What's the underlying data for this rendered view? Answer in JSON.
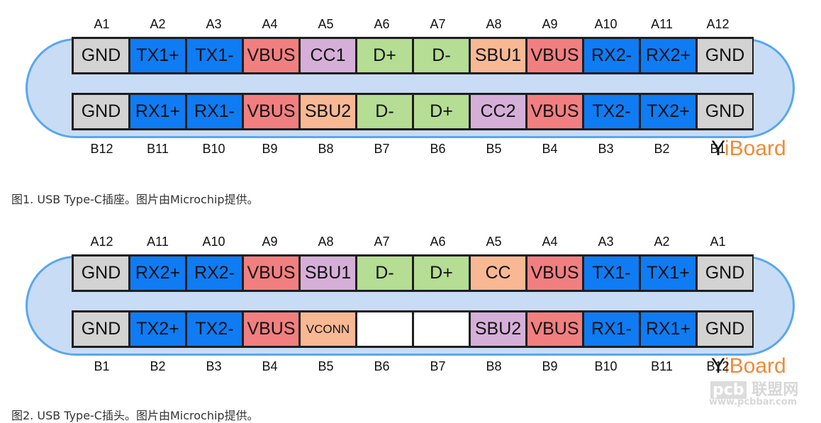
{
  "colors": {
    "GND": "#d3d3d3",
    "TX": "#0f7cf4",
    "RX": "#0f7cf4",
    "VBUS": "#f27f80",
    "CC": "#d6afd9",
    "D": "#b5dd93",
    "SBU": "#f9b894",
    "VCONN": "#f9b894",
    "empty": "#ffffff",
    "capsule_fill": "#c9dcf5",
    "capsule_border": "#58a7ee",
    "logo": "#f08a37"
  },
  "fig1": {
    "top_labels": [
      "A1",
      "A2",
      "A3",
      "A4",
      "A5",
      "A6",
      "A7",
      "A8",
      "A9",
      "A10",
      "A11",
      "A12"
    ],
    "top_pins": [
      {
        "text": "GND",
        "color": "GND"
      },
      {
        "text": "TX1+",
        "color": "TX"
      },
      {
        "text": "TX1-",
        "color": "TX"
      },
      {
        "text": "VBUS",
        "color": "VBUS"
      },
      {
        "text": "CC1",
        "color": "CC"
      },
      {
        "text": "D+",
        "color": "D"
      },
      {
        "text": "D-",
        "color": "D"
      },
      {
        "text": "SBU1",
        "color": "SBU"
      },
      {
        "text": "VBUS",
        "color": "VBUS"
      },
      {
        "text": "RX2-",
        "color": "RX"
      },
      {
        "text": "RX2+",
        "color": "RX"
      },
      {
        "text": "GND",
        "color": "GND"
      }
    ],
    "bottom_pins": [
      {
        "text": "GND",
        "color": "GND"
      },
      {
        "text": "RX1+",
        "color": "RX"
      },
      {
        "text": "RX1-",
        "color": "RX"
      },
      {
        "text": "VBUS",
        "color": "VBUS"
      },
      {
        "text": "SBU2",
        "color": "SBU"
      },
      {
        "text": "D-",
        "color": "D"
      },
      {
        "text": "D+",
        "color": "D"
      },
      {
        "text": "CC2",
        "color": "CC"
      },
      {
        "text": "VBUS",
        "color": "VBUS"
      },
      {
        "text": "TX2-",
        "color": "TX"
      },
      {
        "text": "TX2+",
        "color": "TX"
      },
      {
        "text": "GND",
        "color": "GND"
      }
    ],
    "bottom_labels": [
      "B12",
      "B11",
      "B10",
      "B9",
      "B8",
      "B7",
      "B6",
      "B5",
      "B4",
      "B3",
      "B2",
      "B1"
    ],
    "caption": "图1. USB Type-C插座。图片由Microchip提供。"
  },
  "fig2": {
    "top_labels": [
      "A12",
      "A11",
      "A10",
      "A9",
      "A8",
      "A7",
      "A6",
      "A5",
      "A4",
      "A3",
      "A2",
      "A1"
    ],
    "top_pins": [
      {
        "text": "GND",
        "color": "GND"
      },
      {
        "text": "RX2+",
        "color": "RX"
      },
      {
        "text": "RX2-",
        "color": "RX"
      },
      {
        "text": "VBUS",
        "color": "VBUS"
      },
      {
        "text": "SBU1",
        "color": "CC"
      },
      {
        "text": "D-",
        "color": "D"
      },
      {
        "text": "D+",
        "color": "D"
      },
      {
        "text": "CC",
        "color": "SBU"
      },
      {
        "text": "VBUS",
        "color": "VBUS"
      },
      {
        "text": "TX1-",
        "color": "TX"
      },
      {
        "text": "TX1+",
        "color": "TX"
      },
      {
        "text": "GND",
        "color": "GND"
      }
    ],
    "bottom_pins": [
      {
        "text": "GND",
        "color": "GND"
      },
      {
        "text": "TX2+",
        "color": "TX"
      },
      {
        "text": "TX2-",
        "color": "TX"
      },
      {
        "text": "VBUS",
        "color": "VBUS"
      },
      {
        "text": "VCONN",
        "color": "VCONN"
      },
      {
        "text": "",
        "color": "empty"
      },
      {
        "text": "",
        "color": "empty"
      },
      {
        "text": "SBU2",
        "color": "CC"
      },
      {
        "text": "VBUS",
        "color": "VBUS"
      },
      {
        "text": "RX1-",
        "color": "RX"
      },
      {
        "text": "RX1+",
        "color": "RX"
      },
      {
        "text": "GND",
        "color": "GND"
      }
    ],
    "bottom_labels": [
      "B1",
      "B2",
      "B3",
      "B4",
      "B5",
      "B6",
      "B7",
      "B8",
      "B9",
      "B10",
      "B11",
      "B12"
    ],
    "caption": "图2. USB Type-C插头。图片由Microchip提供。"
  },
  "logo": {
    "prefix": "Y",
    "suffix": "iBoard"
  },
  "watermark": {
    "brand": "pcb",
    "cn": "联盟网",
    "url": "www.pcbbar.com"
  }
}
